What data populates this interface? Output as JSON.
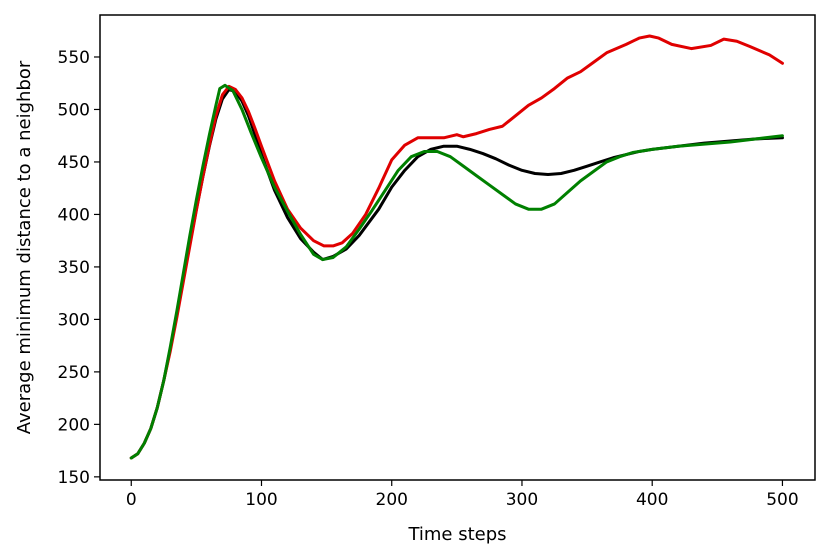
{
  "chart_data": {
    "type": "line",
    "title": "",
    "xlabel": "Time steps",
    "ylabel": "Average minimum distance to a neighbor",
    "xlim": [
      -24,
      525
    ],
    "ylim": [
      147,
      590
    ],
    "xticks": [
      0,
      100,
      200,
      300,
      400,
      500
    ],
    "yticks": [
      150,
      200,
      250,
      300,
      350,
      400,
      450,
      500,
      550
    ],
    "grid": false,
    "legend": "none",
    "series": [
      {
        "color": "#000000",
        "points": [
          [
            0,
            168
          ],
          [
            5,
            172
          ],
          [
            10,
            182
          ],
          [
            15,
            196
          ],
          [
            20,
            216
          ],
          [
            25,
            242
          ],
          [
            30,
            272
          ],
          [
            35,
            304
          ],
          [
            40,
            338
          ],
          [
            45,
            372
          ],
          [
            50,
            405
          ],
          [
            55,
            436
          ],
          [
            60,
            465
          ],
          [
            65,
            491
          ],
          [
            70,
            510
          ],
          [
            75,
            519
          ],
          [
            80,
            517
          ],
          [
            85,
            508
          ],
          [
            90,
            494
          ],
          [
            95,
            476
          ],
          [
            100,
            457
          ],
          [
            110,
            423
          ],
          [
            120,
            397
          ],
          [
            130,
            377
          ],
          [
            140,
            364
          ],
          [
            147,
            357
          ],
          [
            155,
            360
          ],
          [
            165,
            367
          ],
          [
            175,
            380
          ],
          [
            190,
            405
          ],
          [
            200,
            426
          ],
          [
            210,
            442
          ],
          [
            220,
            455
          ],
          [
            230,
            462
          ],
          [
            240,
            465
          ],
          [
            250,
            465
          ],
          [
            260,
            462
          ],
          [
            270,
            458
          ],
          [
            280,
            453
          ],
          [
            290,
            447
          ],
          [
            300,
            442
          ],
          [
            310,
            439
          ],
          [
            320,
            438
          ],
          [
            330,
            439
          ],
          [
            340,
            442
          ],
          [
            350,
            446
          ],
          [
            360,
            450
          ],
          [
            370,
            454
          ],
          [
            380,
            457
          ],
          [
            390,
            460
          ],
          [
            400,
            462
          ],
          [
            420,
            465
          ],
          [
            440,
            468
          ],
          [
            460,
            470
          ],
          [
            480,
            472
          ],
          [
            500,
            473
          ]
        ]
      },
      {
        "color": "#e00000",
        "points": [
          [
            0,
            168
          ],
          [
            5,
            172
          ],
          [
            10,
            182
          ],
          [
            15,
            196
          ],
          [
            20,
            216
          ],
          [
            25,
            242
          ],
          [
            30,
            270
          ],
          [
            35,
            302
          ],
          [
            40,
            336
          ],
          [
            45,
            370
          ],
          [
            50,
            404
          ],
          [
            55,
            436
          ],
          [
            60,
            466
          ],
          [
            65,
            494
          ],
          [
            70,
            514
          ],
          [
            75,
            522
          ],
          [
            80,
            519
          ],
          [
            85,
            511
          ],
          [
            90,
            498
          ],
          [
            95,
            482
          ],
          [
            100,
            465
          ],
          [
            110,
            432
          ],
          [
            120,
            405
          ],
          [
            130,
            387
          ],
          [
            140,
            375
          ],
          [
            148,
            370
          ],
          [
            155,
            370
          ],
          [
            162,
            373
          ],
          [
            170,
            382
          ],
          [
            180,
            400
          ],
          [
            190,
            425
          ],
          [
            200,
            452
          ],
          [
            210,
            466
          ],
          [
            220,
            473
          ],
          [
            230,
            473
          ],
          [
            240,
            473
          ],
          [
            250,
            476
          ],
          [
            255,
            474
          ],
          [
            265,
            477
          ],
          [
            275,
            481
          ],
          [
            285,
            484
          ],
          [
            295,
            494
          ],
          [
            305,
            504
          ],
          [
            315,
            511
          ],
          [
            325,
            520
          ],
          [
            335,
            530
          ],
          [
            345,
            536
          ],
          [
            355,
            545
          ],
          [
            365,
            554
          ],
          [
            380,
            562
          ],
          [
            390,
            568
          ],
          [
            398,
            570
          ],
          [
            405,
            568
          ],
          [
            415,
            562
          ],
          [
            430,
            558
          ],
          [
            445,
            561
          ],
          [
            455,
            567
          ],
          [
            465,
            565
          ],
          [
            475,
            560
          ],
          [
            490,
            552
          ],
          [
            500,
            544
          ]
        ]
      },
      {
        "color": "#008000",
        "points": [
          [
            0,
            168
          ],
          [
            5,
            172
          ],
          [
            10,
            182
          ],
          [
            15,
            196
          ],
          [
            20,
            216
          ],
          [
            25,
            242
          ],
          [
            30,
            274
          ],
          [
            35,
            308
          ],
          [
            40,
            344
          ],
          [
            45,
            380
          ],
          [
            50,
            414
          ],
          [
            55,
            446
          ],
          [
            60,
            476
          ],
          [
            65,
            504
          ],
          [
            68,
            520
          ],
          [
            72,
            523
          ],
          [
            78,
            518
          ],
          [
            85,
            500
          ],
          [
            92,
            478
          ],
          [
            100,
            454
          ],
          [
            110,
            426
          ],
          [
            120,
            403
          ],
          [
            130,
            381
          ],
          [
            140,
            362
          ],
          [
            147,
            357
          ],
          [
            155,
            359
          ],
          [
            165,
            369
          ],
          [
            175,
            386
          ],
          [
            185,
            404
          ],
          [
            195,
            423
          ],
          [
            205,
            442
          ],
          [
            215,
            455
          ],
          [
            225,
            460
          ],
          [
            235,
            460
          ],
          [
            245,
            455
          ],
          [
            255,
            446
          ],
          [
            265,
            437
          ],
          [
            275,
            428
          ],
          [
            285,
            419
          ],
          [
            295,
            410
          ],
          [
            305,
            405
          ],
          [
            315,
            405
          ],
          [
            325,
            410
          ],
          [
            335,
            421
          ],
          [
            345,
            432
          ],
          [
            355,
            441
          ],
          [
            365,
            450
          ],
          [
            375,
            455
          ],
          [
            385,
            459
          ],
          [
            400,
            462
          ],
          [
            420,
            465
          ],
          [
            440,
            467
          ],
          [
            460,
            469
          ],
          [
            480,
            472
          ],
          [
            500,
            475
          ]
        ]
      }
    ]
  }
}
